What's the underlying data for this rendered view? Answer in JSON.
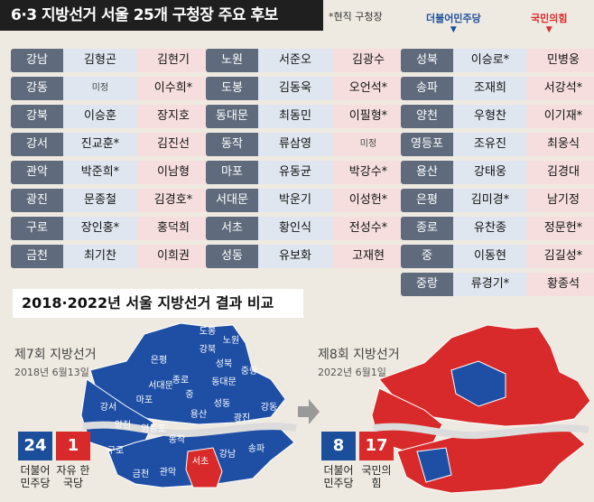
{
  "header": {
    "title": "6·3 지방선거 서울 25개 구청장 주요 후보",
    "incumbent_note": "*현직 구청장",
    "party_dem": "더불어민주당",
    "party_ppp": "국민의힘",
    "dem_color": "#1b4f9c",
    "ppp_color": "#d82a2a"
  },
  "col1": [
    {
      "dist": "강남",
      "dem": "김형곤",
      "ppp": "김현기"
    },
    {
      "dist": "강동",
      "dem": "미정",
      "ppp": "이수희*"
    },
    {
      "dist": "강북",
      "dem": "이승훈",
      "ppp": "장지호"
    },
    {
      "dist": "강서",
      "dem": "진교훈*",
      "ppp": "김진선"
    },
    {
      "dist": "관악",
      "dem": "박준희*",
      "ppp": "이남형"
    },
    {
      "dist": "광진",
      "dem": "문종철",
      "ppp": "김경호*"
    },
    {
      "dist": "구로",
      "dem": "장인홍*",
      "ppp": "홍덕희"
    },
    {
      "dist": "금천",
      "dem": "최기찬",
      "ppp": "이희권"
    }
  ],
  "col2": [
    {
      "dist": "노원",
      "dem": "서준오",
      "ppp": "김광수"
    },
    {
      "dist": "도봉",
      "dem": "김동욱",
      "ppp": "오언석*"
    },
    {
      "dist": "동대문",
      "dem": "최동민",
      "ppp": "이필형*"
    },
    {
      "dist": "동작",
      "dem": "류삼영",
      "ppp": "미정"
    },
    {
      "dist": "마포",
      "dem": "유동균",
      "ppp": "박강수*"
    },
    {
      "dist": "서대문",
      "dem": "박운기",
      "ppp": "이성헌*"
    },
    {
      "dist": "서초",
      "dem": "황인식",
      "ppp": "전성수*"
    },
    {
      "dist": "성동",
      "dem": "유보화",
      "ppp": "고재현"
    }
  ],
  "col3": [
    {
      "dist": "성북",
      "dem": "이승로*",
      "ppp": "민병웅"
    },
    {
      "dist": "송파",
      "dem": "조재희",
      "ppp": "서강석*"
    },
    {
      "dist": "양천",
      "dem": "우형찬",
      "ppp": "이기재*"
    },
    {
      "dist": "영등포",
      "dem": "조유진",
      "ppp": "최웅식"
    },
    {
      "dist": "용산",
      "dem": "강태웅",
      "ppp": "김경대"
    },
    {
      "dist": "은평",
      "dem": "김미경*",
      "ppp": "남기정"
    },
    {
      "dist": "종로",
      "dem": "유찬종",
      "ppp": "정문헌*"
    },
    {
      "dist": "중",
      "dem": "이동현",
      "ppp": "김길성*"
    },
    {
      "dist": "중랑",
      "dem": "류경기*",
      "ppp": "황종석"
    }
  ],
  "comparison": {
    "title": "2018·2022년 서울 지방선거 결과 비교",
    "e7_title": "제7회 지방선거",
    "e7_date": "2018년 6월13일",
    "e7_dem_count": "24",
    "e7_other_count": "1",
    "e7_dem_label": "더불어 민주당",
    "e7_other_label": "자유 한국당",
    "e8_title": "제8회 지방선거",
    "e8_date": "2022년 6월1일",
    "e8_dem_count": "8",
    "e8_other_count": "17",
    "e8_dem_label": "더불어 민주당",
    "e8_other_label": "국민의 힘",
    "map_labels": [
      "도봉",
      "노원",
      "강북",
      "은평",
      "성북",
      "중랑",
      "종로",
      "동대문",
      "서대문",
      "중",
      "마포",
      "성동",
      "광진",
      "강동",
      "용산",
      "강서",
      "양천",
      "영등포",
      "동작",
      "구로",
      "서초",
      "강남",
      "송파",
      "금천",
      "관악"
    ]
  }
}
